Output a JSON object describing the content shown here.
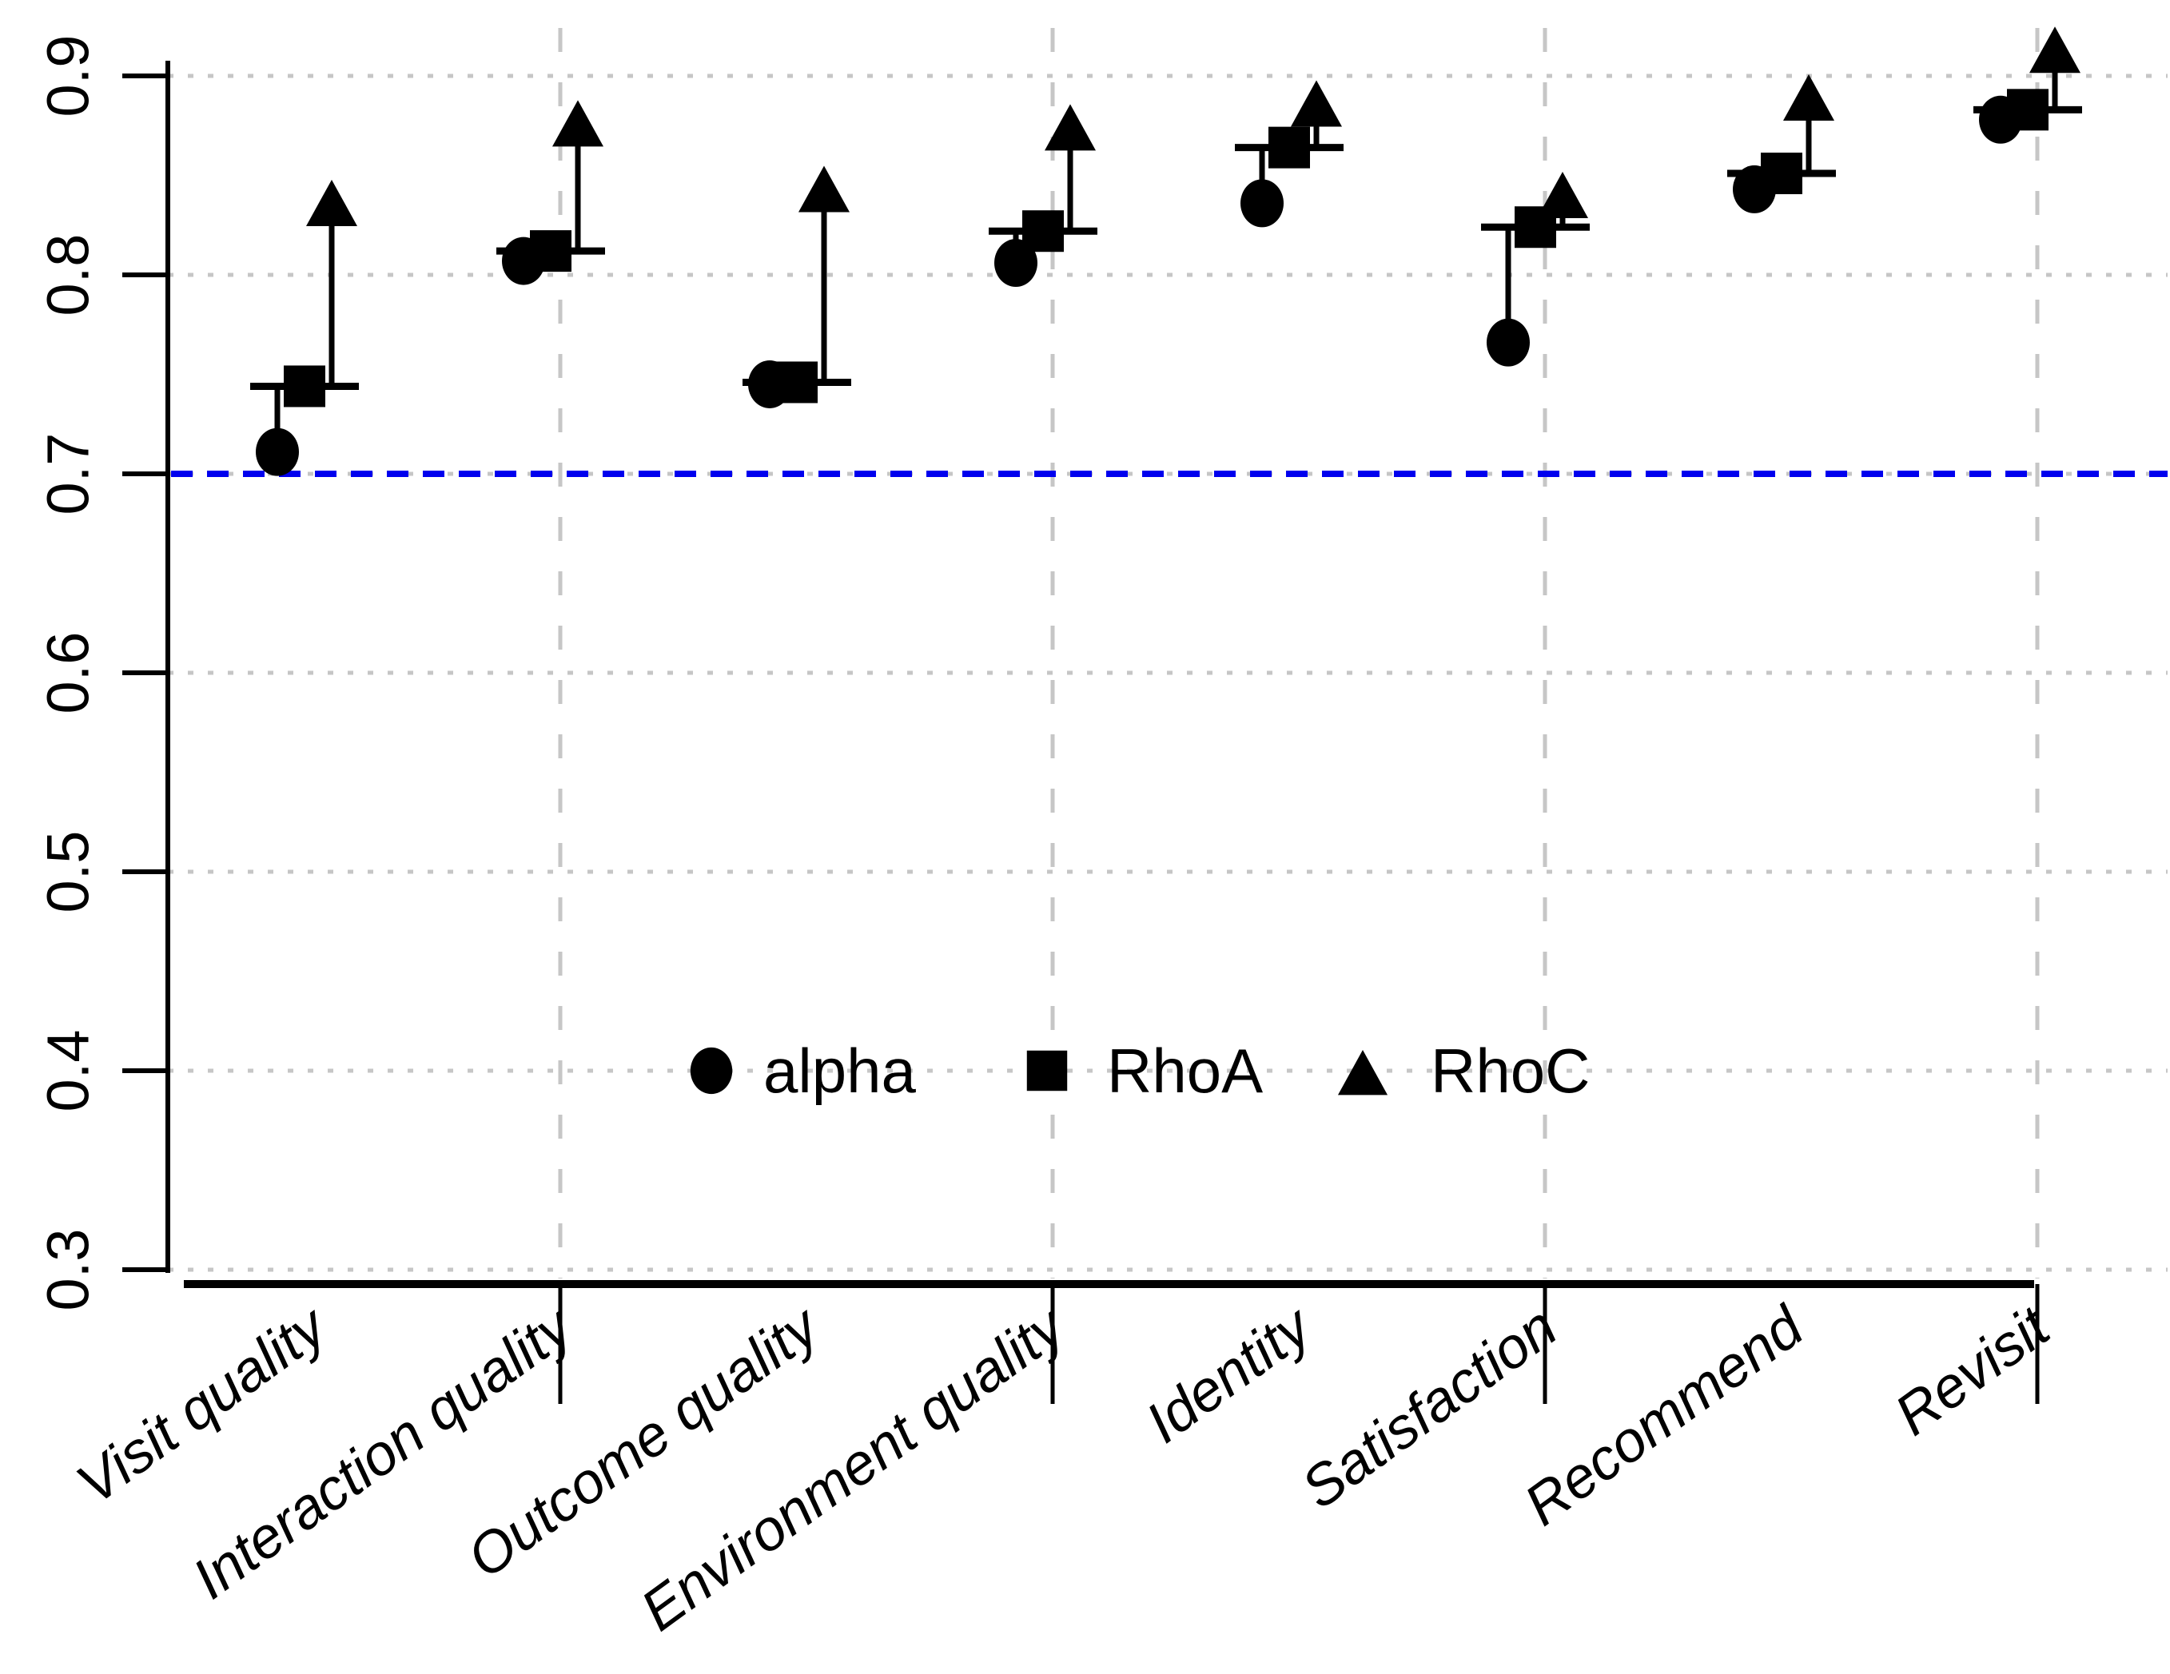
{
  "chart_data": {
    "type": "scatter",
    "title": "",
    "xlabel": "",
    "ylabel": "",
    "categories": [
      "Visit quality",
      "Interaction quality",
      "Outcome  quality",
      "Environment quality",
      "Identity",
      "Satisfaction",
      "Recommend",
      "Revisit"
    ],
    "series": [
      {
        "name": "alpha",
        "marker": "circle",
        "values": [
          0.711,
          0.807,
          0.745,
          0.806,
          0.836,
          0.766,
          0.843,
          0.878
        ]
      },
      {
        "name": "RhoA",
        "marker": "square",
        "values": [
          0.744,
          0.812,
          0.746,
          0.822,
          0.864,
          0.824,
          0.851,
          0.883
        ]
      },
      {
        "name": "RhoC",
        "marker": "triangle",
        "values": [
          0.835,
          0.875,
          0.842,
          0.873,
          0.885,
          0.839,
          0.888,
          0.912
        ]
      }
    ],
    "connectors": "vertical line with upward arrow from RhoA level to RhoC triangle; short drop line to alpha circle; horizontal crossbar at RhoA level",
    "y_ticks": [
      "0.3",
      "0.4",
      "0.5",
      "0.6",
      "0.7",
      "0.8",
      "0.9"
    ],
    "ylim": [
      0.3,
      0.92
    ],
    "reference_line": {
      "value": 0.7,
      "color": "#0000ee",
      "style": "dashed"
    },
    "grid": {
      "horizontal_style": "dotted",
      "vertical_style": "dashed",
      "color": "#c6c6c6",
      "vertical_at_category_indices": [
        1,
        3,
        5,
        7
      ]
    },
    "legend": {
      "position": "inside-plot, centered on 0.4 gridline",
      "entries": [
        {
          "label": "alpha",
          "marker": "circle"
        },
        {
          "label": "RhoA",
          "marker": "square"
        },
        {
          "label": "RhoC",
          "marker": "triangle"
        }
      ]
    },
    "colors": {
      "marker": "#000000",
      "axis": "#000000",
      "reference": "#0000ee",
      "grid": "#c6c6c6"
    }
  }
}
